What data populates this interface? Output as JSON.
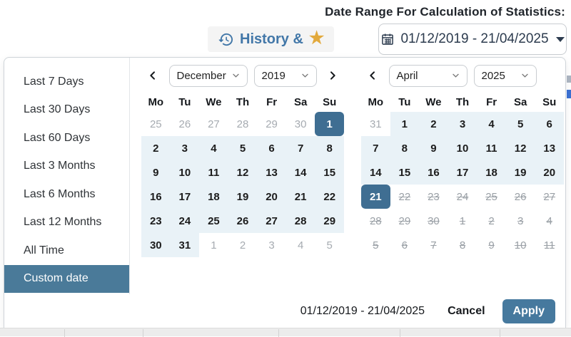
{
  "colors": {
    "accent": "#3f6e92",
    "sidebarSelected": "#4a7a99",
    "applyBlue": "#46799e",
    "rangeBg": "#e9f2f7",
    "dayText": "#1c1c1c",
    "mutedDay": "#a6abb1",
    "disabledDay": "#9aa0a6",
    "historyBlue": "#4277a8",
    "starGold": "#e2a93c",
    "inputText": "#2c3b4e",
    "border": "#cfd4d9"
  },
  "header": {
    "title": "Date Range For Calculation of Statistics:"
  },
  "toolbar": {
    "history_label": "History &",
    "star": "★",
    "date_value": "01/12/2019 - 21/04/2025"
  },
  "sidebar": {
    "items": [
      {
        "label": "Last 7 Days",
        "selected": false
      },
      {
        "label": "Last 30 Days",
        "selected": false
      },
      {
        "label": "Last 60 Days",
        "selected": false
      },
      {
        "label": "Last 3 Months",
        "selected": false
      },
      {
        "label": "Last 6 Months",
        "selected": false
      },
      {
        "label": "Last 12 Months",
        "selected": false
      },
      {
        "label": "All Time",
        "selected": false
      },
      {
        "label": "Custom date",
        "selected": true
      }
    ]
  },
  "calendars": [
    {
      "month": "December",
      "year": "2019",
      "has_prev": true,
      "has_next": true,
      "weekdays": [
        "Mo",
        "Tu",
        "We",
        "Th",
        "Fr",
        "Sa",
        "Su"
      ],
      "weeks": [
        [
          [
            "25",
            "out"
          ],
          [
            "26",
            "out"
          ],
          [
            "27",
            "out"
          ],
          [
            "28",
            "out"
          ],
          [
            "29",
            "out"
          ],
          [
            "30",
            "out"
          ],
          [
            "1",
            "sel"
          ]
        ],
        [
          [
            "2",
            "range"
          ],
          [
            "3",
            "range"
          ],
          [
            "4",
            "range"
          ],
          [
            "5",
            "range"
          ],
          [
            "6",
            "range"
          ],
          [
            "7",
            "range"
          ],
          [
            "8",
            "range"
          ]
        ],
        [
          [
            "9",
            "range"
          ],
          [
            "10",
            "range"
          ],
          [
            "11",
            "range"
          ],
          [
            "12",
            "range"
          ],
          [
            "13",
            "range"
          ],
          [
            "14",
            "range"
          ],
          [
            "15",
            "range"
          ]
        ],
        [
          [
            "16",
            "range"
          ],
          [
            "17",
            "range"
          ],
          [
            "18",
            "range"
          ],
          [
            "19",
            "range"
          ],
          [
            "20",
            "range"
          ],
          [
            "21",
            "range"
          ],
          [
            "22",
            "range"
          ]
        ],
        [
          [
            "23",
            "range"
          ],
          [
            "24",
            "range"
          ],
          [
            "25",
            "range"
          ],
          [
            "26",
            "range"
          ],
          [
            "27",
            "range"
          ],
          [
            "28",
            "range"
          ],
          [
            "29",
            "range"
          ]
        ],
        [
          [
            "30",
            "range"
          ],
          [
            "31",
            "range"
          ],
          [
            "1",
            "out"
          ],
          [
            "2",
            "out"
          ],
          [
            "3",
            "out"
          ],
          [
            "4",
            "out"
          ],
          [
            "5",
            "out"
          ]
        ]
      ]
    },
    {
      "month": "April",
      "year": "2025",
      "has_prev": true,
      "has_next": false,
      "weekdays": [
        "Mo",
        "Tu",
        "We",
        "Th",
        "Fr",
        "Sa",
        "Su"
      ],
      "weeks": [
        [
          [
            "31",
            "out"
          ],
          [
            "1",
            "range"
          ],
          [
            "2",
            "range"
          ],
          [
            "3",
            "range"
          ],
          [
            "4",
            "range"
          ],
          [
            "5",
            "range"
          ],
          [
            "6",
            "range"
          ]
        ],
        [
          [
            "7",
            "range"
          ],
          [
            "8",
            "range"
          ],
          [
            "9",
            "range"
          ],
          [
            "10",
            "range"
          ],
          [
            "11",
            "range"
          ],
          [
            "12",
            "range"
          ],
          [
            "13",
            "range"
          ]
        ],
        [
          [
            "14",
            "range"
          ],
          [
            "15",
            "range"
          ],
          [
            "16",
            "range"
          ],
          [
            "17",
            "range"
          ],
          [
            "18",
            "range"
          ],
          [
            "19",
            "range"
          ],
          [
            "20",
            "range"
          ]
        ],
        [
          [
            "21",
            "sel"
          ],
          [
            "22",
            "dis"
          ],
          [
            "23",
            "dis"
          ],
          [
            "24",
            "dis"
          ],
          [
            "25",
            "dis"
          ],
          [
            "26",
            "dis"
          ],
          [
            "27",
            "dis"
          ]
        ],
        [
          [
            "28",
            "dis"
          ],
          [
            "29",
            "dis"
          ],
          [
            "30",
            "dis"
          ],
          [
            "1",
            "dis"
          ],
          [
            "2",
            "dis"
          ],
          [
            "3",
            "dis"
          ],
          [
            "4",
            "dis"
          ]
        ],
        [
          [
            "5",
            "dis"
          ],
          [
            "6",
            "dis"
          ],
          [
            "7",
            "dis"
          ],
          [
            "8",
            "dis"
          ],
          [
            "9",
            "dis"
          ],
          [
            "10",
            "dis"
          ],
          [
            "11",
            "dis"
          ]
        ]
      ]
    }
  ],
  "footer": {
    "range": "01/12/2019 - 21/04/2025",
    "cancel": "Cancel",
    "apply": "Apply"
  }
}
